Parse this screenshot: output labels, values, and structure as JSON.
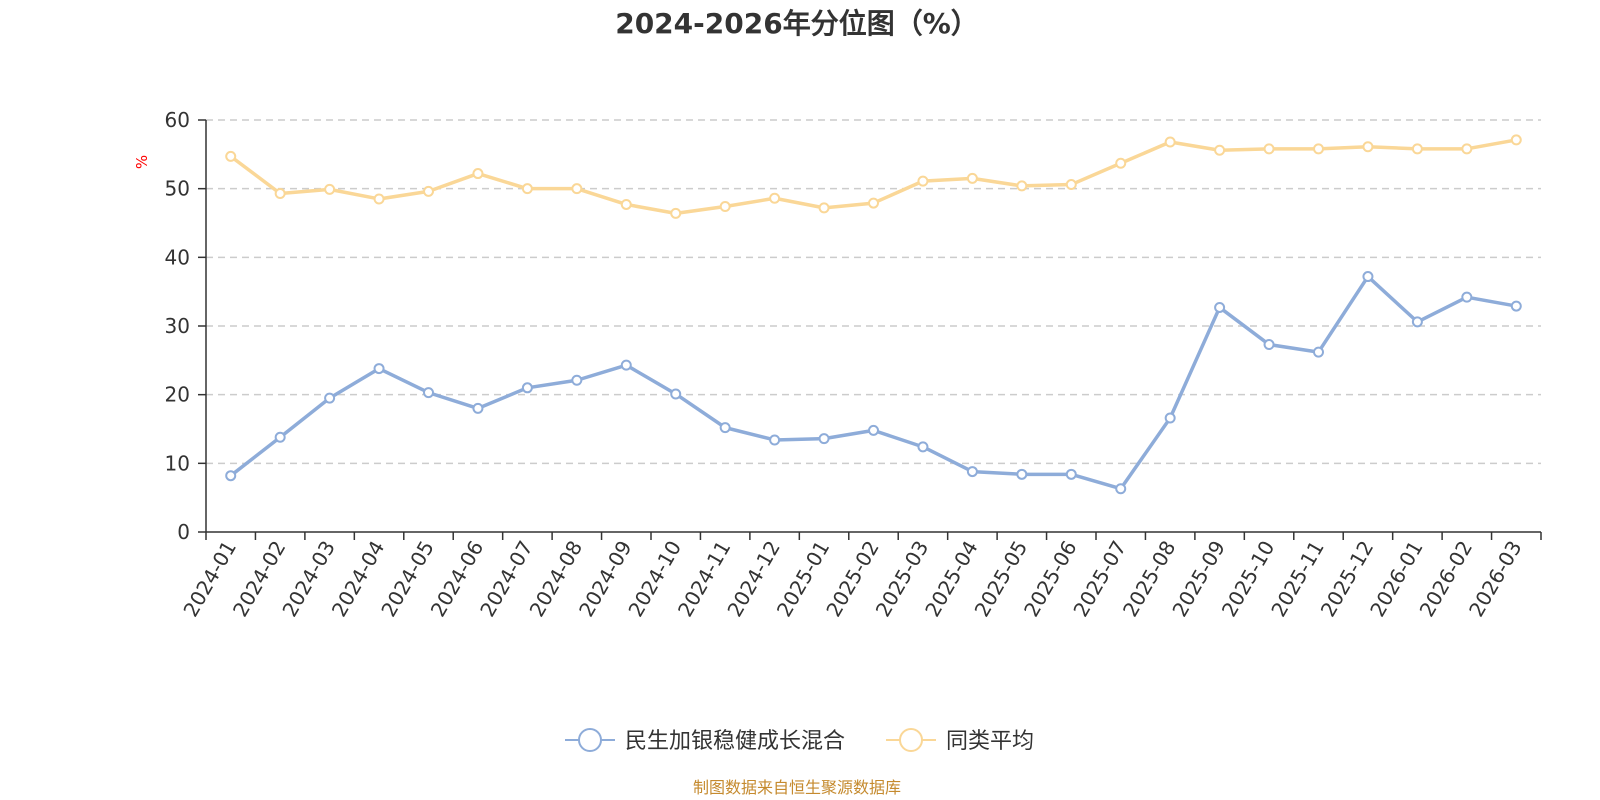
{
  "chart_data": {
    "type": "line",
    "title": "2024-2026年分位图（%）",
    "ylabel": "%",
    "xlabel": "",
    "ylim": [
      0,
      60
    ],
    "yticks": [
      0,
      10,
      20,
      30,
      40,
      50,
      60
    ],
    "grid": true,
    "legend_position": "bottom-center",
    "categories": [
      "2024-01",
      "2024-02",
      "2024-03",
      "2024-04",
      "2024-05",
      "2024-06",
      "2024-07",
      "2024-08",
      "2024-09",
      "2024-10",
      "2024-11",
      "2024-12",
      "2025-01",
      "2025-02",
      "2025-03",
      "2025-04",
      "2025-05",
      "2025-06",
      "2025-07",
      "2025-08",
      "2025-09",
      "2025-10",
      "2025-11",
      "2025-12",
      "2026-01",
      "2026-02",
      "2026-03"
    ],
    "series": [
      {
        "name": "民生加银稳健成长混合",
        "color": "#8eacd9",
        "values": [
          8.2,
          13.8,
          19.5,
          23.8,
          20.3,
          18.0,
          21.0,
          22.1,
          24.3,
          20.1,
          15.2,
          13.4,
          13.6,
          14.8,
          12.4,
          8.8,
          8.4,
          8.4,
          6.3,
          16.6,
          32.7,
          27.3,
          26.2,
          37.2,
          30.6,
          34.2,
          32.9
        ]
      },
      {
        "name": "同类平均",
        "color": "#fad797",
        "values": [
          54.7,
          49.3,
          49.9,
          48.5,
          49.6,
          52.2,
          50.0,
          50.0,
          47.7,
          46.4,
          47.4,
          48.6,
          47.2,
          47.9,
          51.1,
          51.5,
          50.4,
          50.6,
          53.7,
          56.8,
          55.6,
          55.8,
          55.8,
          56.1,
          55.8,
          55.8,
          57.1
        ]
      }
    ]
  },
  "footer": {
    "source": "制图数据来自恒生聚源数据库",
    "source_color": "#c58a2e"
  }
}
